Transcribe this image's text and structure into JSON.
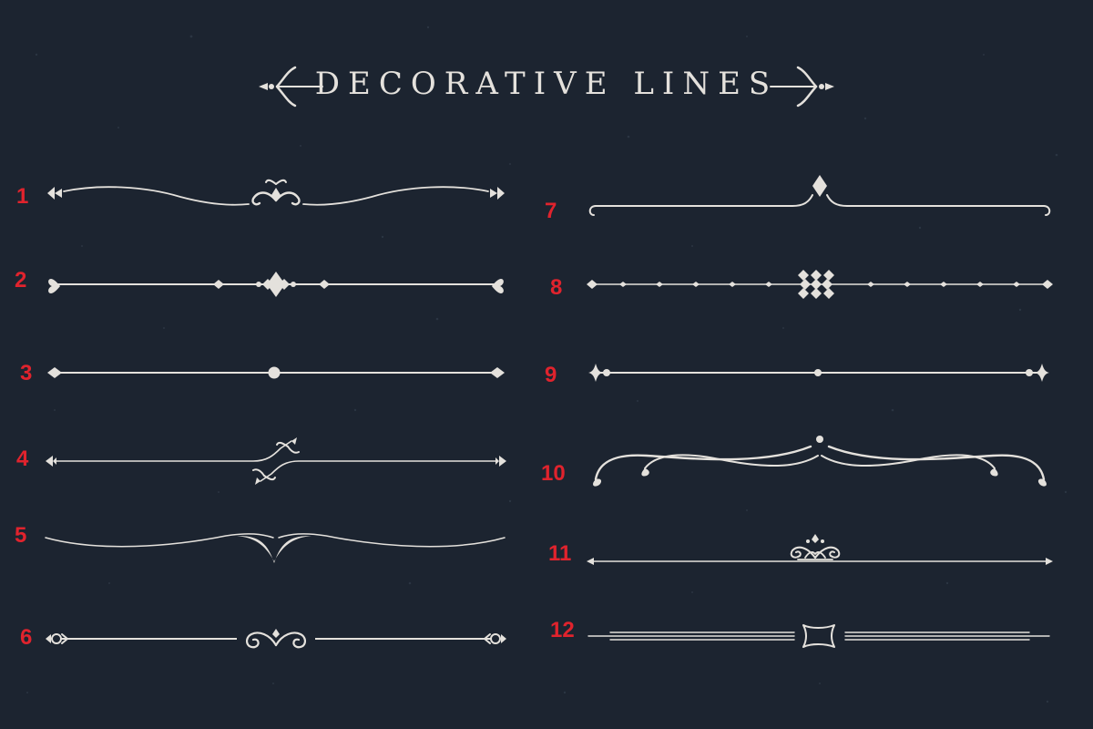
{
  "title": "DECORATIVE LINES",
  "colors": {
    "background": "#1c2430",
    "ornament": "#e4e1dc",
    "number": "#e0232d"
  },
  "items": [
    {
      "number": "1",
      "style": "swirl-center-fleur"
    },
    {
      "number": "2",
      "style": "heart-ends-diamond-cluster"
    },
    {
      "number": "3",
      "style": "dot-center-diamond-ends"
    },
    {
      "number": "4",
      "style": "split-leaf-center"
    },
    {
      "number": "5",
      "style": "thin-swoop-v-center"
    },
    {
      "number": "6",
      "style": "scroll-center-keyhole-ends"
    },
    {
      "number": "7",
      "style": "diamond-peak-hook-ends"
    },
    {
      "number": "8",
      "style": "diamond-cluster-dotted"
    },
    {
      "number": "9",
      "style": "dot-center-star-ends"
    },
    {
      "number": "10",
      "style": "draped-swag-curl-ends"
    },
    {
      "number": "11",
      "style": "scroll-crown-center"
    },
    {
      "number": "12",
      "style": "double-line-ribbon-center"
    }
  ]
}
